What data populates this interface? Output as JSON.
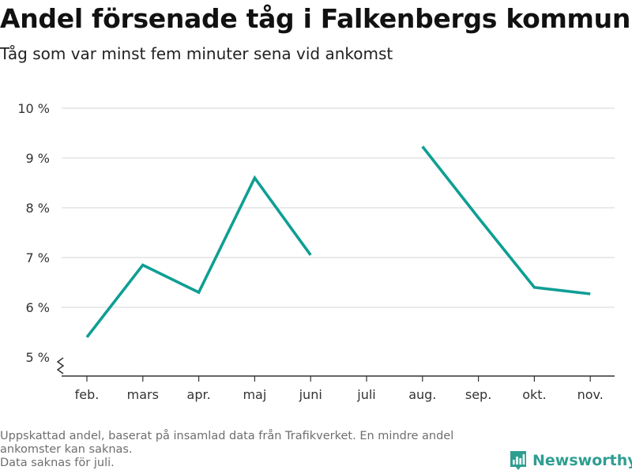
{
  "chart_data": {
    "type": "line",
    "title": "Andel försenade tåg i Falkenbergs kommun",
    "subtitle": "Tåg som var minst fem minuter sena vid ankomst",
    "categories": [
      "feb.",
      "mars",
      "apr.",
      "maj",
      "juni",
      "juli",
      "aug.",
      "sep.",
      "okt.",
      "nov."
    ],
    "series": [
      {
        "values": [
          5.4,
          6.85,
          6.3,
          8.6,
          7.05,
          null,
          9.23,
          7.8,
          6.4,
          6.27
        ]
      }
    ],
    "y_ticks": [
      5,
      6,
      7,
      8,
      9,
      10
    ],
    "y_tick_labels": [
      "5 %",
      "6 %",
      "7 %",
      "8 %",
      "9 %",
      "10 %"
    ],
    "ylim": [
      5,
      10
    ],
    "y_axis_broken": true,
    "grid": true,
    "colors": {
      "line": "#0f9e94",
      "grid": "#dddddd",
      "axis": "#333333"
    }
  },
  "notes": {
    "line1": "Uppskattad andel, baserat på insamlad data från Trafikverket. En mindre andel ankomster kan saknas.",
    "line2": "Data saknas för juli."
  },
  "brand": {
    "name": "Newsworthy",
    "icon": "newsworthy-logo-icon",
    "color": "#2e9e91"
  }
}
